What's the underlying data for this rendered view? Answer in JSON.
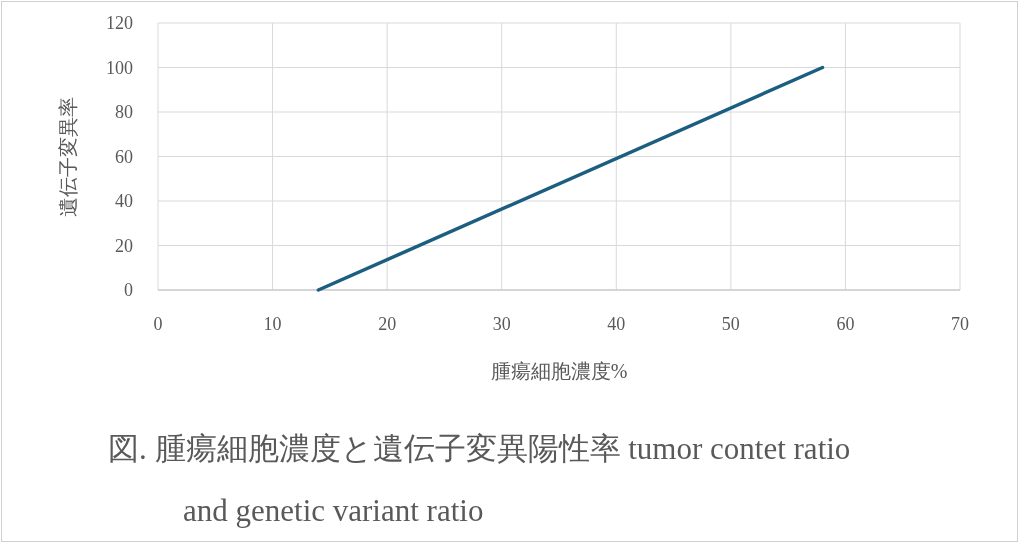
{
  "chart_data": {
    "type": "line",
    "title": "図.  腫瘍細胞濃度と遺伝子変異陽性率 tumor contet ratio and genetic variant ratio",
    "xlabel": "腫瘍細胞濃度%",
    "ylabel": "遺伝子変異率",
    "series": [
      {
        "color": "#1b5e80",
        "x": [
          14,
          58
        ],
        "values": [
          0,
          100
        ]
      }
    ],
    "xlim": [
      0,
      70
    ],
    "xticks": [
      0,
      10,
      20,
      30,
      40,
      50,
      60,
      70
    ],
    "ylim": [
      0,
      120
    ],
    "yticks": [
      0,
      20,
      40,
      60,
      80,
      100,
      120
    ],
    "grid": true,
    "marker": "none",
    "line_style": "solid"
  }
}
